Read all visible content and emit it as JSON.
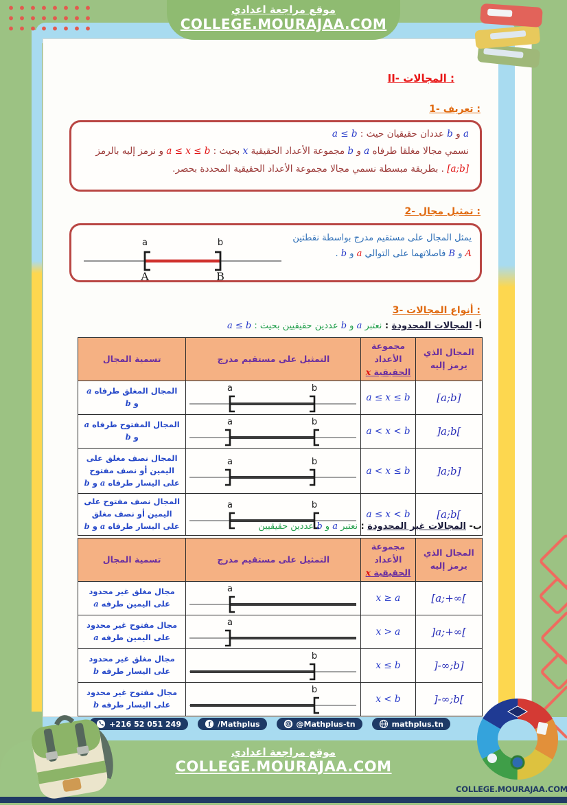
{
  "header": {
    "title_ar": "موقع مراجعة اعدادي",
    "url": "COLLEGE.MOURAJAA.COM"
  },
  "document": {
    "main_title": "II- المجالات :",
    "def_heading": "1- تعريف :",
    "definition_box": {
      "line1": [
        {
          "t": "a",
          "c": "m"
        },
        {
          "t": " و ",
          "c": "mr"
        },
        {
          "t": "b",
          "c": "m"
        },
        {
          "t": " عددان حقيقيان حيث : ",
          "c": "mr"
        },
        {
          "t": "a ≤ b",
          "c": "m"
        }
      ],
      "line2": [
        {
          "t": "نسمي مجالا مغلقا طرفاه ",
          "c": "mr"
        },
        {
          "t": "a",
          "c": "m"
        },
        {
          "t": " و ",
          "c": "mr"
        },
        {
          "t": "b",
          "c": "m"
        },
        {
          "t": " مجموعة الأعداد الحقيقية ",
          "c": "mr"
        },
        {
          "t": "x",
          "c": "m"
        },
        {
          "t": " بحيث : ",
          "c": "mr"
        },
        {
          "t": "a ≤ x ≤ b",
          "c": "r"
        },
        {
          "t": " و نرمز إليه بالرمز ",
          "c": "mr"
        },
        {
          "t": "[a;b]",
          "c": "r"
        },
        {
          "t": " . بطريقة مبسطة نسمي مجالا مجموعة الأعداد الحقيقية المحددة بحصر.",
          "c": "mr"
        }
      ]
    },
    "rep_heading": "2- تمثيل مجال :",
    "representation_box": {
      "text": [
        {
          "t": "يمثل المجال على مستقيم مدرج بواسطة نقطتين ",
          "c": "b2"
        },
        {
          "t": "A",
          "c": "r"
        },
        {
          "t": " و ",
          "c": "b2"
        },
        {
          "t": "B",
          "c": "m"
        },
        {
          "t": " فاصلاتهما على التوالي ",
          "c": "b2"
        },
        {
          "t": "a",
          "c": "r"
        },
        {
          "t": " و ",
          "c": "b2"
        },
        {
          "t": "b",
          "c": "m"
        },
        {
          "t": " .",
          "c": "b2"
        }
      ],
      "diagram": {
        "label_a": "a",
        "label_b": "b",
        "label_A": "A",
        "label_B": "B",
        "left_bracket": "[",
        "right_bracket": "]"
      }
    },
    "types_heading": "3- أنواع المجالات :",
    "tables": [
      {
        "intro": [
          {
            "t": "أ- ",
            "c": "dk"
          },
          {
            "t": "المجالات المحدودة",
            "c": "dku"
          },
          {
            "t": " : ",
            "c": "dk"
          },
          {
            "t": "نعتبر ",
            "c": "g"
          },
          {
            "t": "a",
            "c": "m"
          },
          {
            "t": " و ",
            "c": "g"
          },
          {
            "t": "b",
            "c": "m"
          },
          {
            "t": " عددين حقيقيين بحيث : ",
            "c": "g"
          },
          {
            "t": "a ≤ b",
            "c": "m"
          }
        ],
        "headers": [
          {
            "t": "المجال الذي يرمز إليه"
          },
          {
            "t": "مجموعة الأعداد",
            "u": "الحقيقية",
            "x": "x"
          },
          {
            "t": "التمثيل على مستقيم مدرج"
          },
          {
            "t": "تسمية المجال"
          }
        ],
        "rows": [
          {
            "name": [
              {
                "t": "المجال المغلق طرفاه ",
                "c": "n"
              },
              {
                "t": "a",
                "c": "nm"
              },
              {
                "t": " و ",
                "c": "n"
              },
              {
                "t": "b",
                "c": "nm"
              }
            ],
            "rep": {
              "k": "b",
              "l": "[",
              "r": "]",
              "la": "a",
              "lb": "b"
            },
            "ineq": "a ≤ x ≤ b",
            "sym": "[a;b]"
          },
          {
            "name": [
              {
                "t": "المجال المفتوح طرفاه ",
                "c": "n"
              },
              {
                "t": "a",
                "c": "nm"
              },
              {
                "t": " و ",
                "c": "n"
              },
              {
                "t": "b",
                "c": "nm"
              }
            ],
            "rep": {
              "k": "b",
              "l": "]",
              "r": "[",
              "la": "a",
              "lb": "b"
            },
            "ineq": "a < x < b",
            "sym": "]a;b["
          },
          {
            "name": [
              {
                "t": "المجال نصف مغلق على اليمين أو نصف مفتوح على اليسار طرفاه ",
                "c": "n"
              },
              {
                "t": "a",
                "c": "nm"
              },
              {
                "t": " و ",
                "c": "n"
              },
              {
                "t": "b",
                "c": "nm"
              }
            ],
            "rep": {
              "k": "b",
              "l": "]",
              "r": "]",
              "la": "a",
              "lb": "b"
            },
            "ineq": "a < x ≤ b",
            "sym": "]a;b]"
          },
          {
            "name": [
              {
                "t": "المجال نصف مفتوح على اليمين أو نصف مغلق على اليسار طرفاه ",
                "c": "n"
              },
              {
                "t": "a",
                "c": "nm"
              },
              {
                "t": " و ",
                "c": "n"
              },
              {
                "t": "b",
                "c": "nm"
              }
            ],
            "rep": {
              "k": "b",
              "l": "[",
              "r": "[",
              "la": "a",
              "lb": "b"
            },
            "ineq": "a ≤ x < b",
            "sym": "[a;b["
          }
        ]
      },
      {
        "intro": [
          {
            "t": "ب- ",
            "c": "dk"
          },
          {
            "t": "المجالات غير المحدودة",
            "c": "dku"
          },
          {
            "t": " : ",
            "c": "dk"
          },
          {
            "t": "نعتبر ",
            "c": "g"
          },
          {
            "t": "a",
            "c": "m"
          },
          {
            "t": " و ",
            "c": "g"
          },
          {
            "t": "b",
            "c": "m"
          },
          {
            "t": " عددين حقيقيين",
            "c": "g"
          }
        ],
        "headers": [
          {
            "t": "المجال الذي يرمز إليه"
          },
          {
            "t": "مجموعة الأعداد",
            "u": "الحقيقية",
            "x": "x"
          },
          {
            "t": "التمثيل على مستقيم مدرج"
          },
          {
            "t": "تسمية المجال"
          }
        ],
        "rows": [
          {
            "name": [
              {
                "t": "مجال مغلق غير محدود على اليمين طرفه ",
                "c": "n"
              },
              {
                "t": "a",
                "c": "nm"
              }
            ],
            "rep": {
              "k": "rr",
              "br": "[",
              "lab": "a"
            },
            "ineq": "x ≥ a",
            "sym": "[a;+∞["
          },
          {
            "name": [
              {
                "t": "مجال مفتوح غير محدود على اليمين طرفه ",
                "c": "n"
              },
              {
                "t": "a",
                "c": "nm"
              }
            ],
            "rep": {
              "k": "rr",
              "br": "]",
              "lab": "a"
            },
            "ineq": "x > a",
            "sym": "]a;+∞["
          },
          {
            "name": [
              {
                "t": "مجال مغلق غير محدود على اليسار طرفه ",
                "c": "n"
              },
              {
                "t": "b",
                "c": "nm"
              }
            ],
            "rep": {
              "k": "rl",
              "br": "]",
              "lab": "b"
            },
            "ineq": "x ≤ b",
            "sym": "]-∞;b]"
          },
          {
            "name": [
              {
                "t": "مجال مفتوح غير محدود على اليسار طرفه ",
                "c": "n"
              },
              {
                "t": "b",
                "c": "nm"
              }
            ],
            "rep": {
              "k": "rl",
              "br": "[",
              "lab": "b"
            },
            "ineq": "x < b",
            "sym": "]-∞;b["
          }
        ]
      }
    ]
  },
  "social": {
    "items": [
      {
        "icon": "whatsapp-icon",
        "text": "+216 52 051 249"
      },
      {
        "icon": "facebook-icon",
        "text": "/Mathplus"
      },
      {
        "icon": "instagram-icon",
        "text": "@Mathplus-tn"
      },
      {
        "icon": "globe-icon",
        "text": "mathplus.tn"
      }
    ]
  },
  "footer": {
    "title_ar": "موقع مراجعة اعدادي",
    "url": "COLLEGE.MOURAJAA.COM",
    "logo_caption": "COLLEGE.MOURAJAA.COM"
  },
  "colors": {
    "background_green": "#9cc283",
    "banner_green": "#8fbb71",
    "frame_blue": "#a8dbf0",
    "stripe_yellow": "#fdd74f",
    "navy": "#1e3a66",
    "box_border_red": "#b94744",
    "table_header_peach": "#f5b183",
    "header_text_purple": "#6a2fa0",
    "title_red": "#e81616",
    "subtitle_orange": "#e06a10",
    "math_blue": "#2437c8",
    "math_red": "#e01212",
    "body_maroon": "#9c3a38",
    "name_blue": "#2749c9",
    "green_text": "#219e4b"
  }
}
